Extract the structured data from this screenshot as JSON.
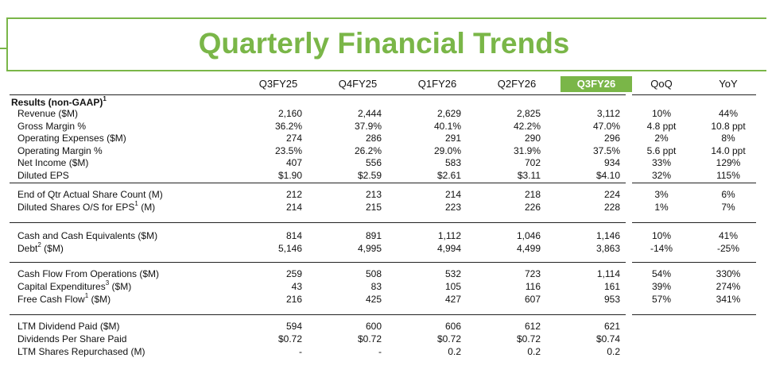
{
  "title": "Quarterly Financial Trends",
  "colors": {
    "accent": "#7ab648"
  },
  "columns": [
    "Q3FY25",
    "Q4FY25",
    "Q1FY26",
    "Q2FY26",
    "Q3FY26"
  ],
  "change_columns": [
    "QoQ",
    "YoY"
  ],
  "highlight_column": "Q3FY26",
  "sections": [
    {
      "title": "Results (non-GAAP)",
      "title_sup": "1",
      "rows": [
        {
          "label": "Revenue ($M)",
          "sup": "",
          "values": [
            "2,160",
            "2,444",
            "2,629",
            "2,825",
            "3,112"
          ],
          "qoq": "10%",
          "yoy": "44%"
        },
        {
          "label": "Gross Margin %",
          "sup": "",
          "values": [
            "36.2%",
            "37.9%",
            "40.1%",
            "42.2%",
            "47.0%"
          ],
          "qoq": "4.8 ppt",
          "yoy": "10.8 ppt"
        },
        {
          "label": "Operating Expenses ($M)",
          "sup": "",
          "values": [
            "274",
            "286",
            "291",
            "290",
            "296"
          ],
          "qoq": "2%",
          "yoy": "8%"
        },
        {
          "label": "Operating Margin %",
          "sup": "",
          "values": [
            "23.5%",
            "26.2%",
            "29.0%",
            "31.9%",
            "37.5%"
          ],
          "qoq": "5.6 ppt",
          "yoy": "14.0 ppt"
        },
        {
          "label": "Net Income ($M)",
          "sup": "",
          "values": [
            "407",
            "556",
            "583",
            "702",
            "934"
          ],
          "qoq": "33%",
          "yoy": "129%"
        },
        {
          "label": "Diluted EPS",
          "sup": "",
          "values": [
            "$1.90",
            "$2.59",
            "$2.61",
            "$3.11",
            "$4.10"
          ],
          "qoq": "32%",
          "yoy": "115%"
        }
      ]
    },
    {
      "title": "",
      "title_sup": "",
      "rows": [
        {
          "label": "End of Qtr Actual Share Count (M)",
          "sup": "",
          "values": [
            "212",
            "213",
            "214",
            "218",
            "224"
          ],
          "qoq": "3%",
          "yoy": "6%"
        },
        {
          "label": "Diluted Shares O/S for EPS",
          "sup": "1",
          "suffix": " (M)",
          "values": [
            "214",
            "215",
            "223",
            "226",
            "228"
          ],
          "qoq": "1%",
          "yoy": "7%"
        }
      ]
    },
    {
      "title": "",
      "title_sup": "",
      "rows": [
        {
          "label": "Cash and Cash Equivalents ($M)",
          "sup": "",
          "values": [
            "814",
            "891",
            "1,112",
            "1,046",
            "1,146"
          ],
          "qoq": "10%",
          "yoy": "41%"
        },
        {
          "label": "Debt",
          "sup": "2",
          "suffix": " ($M)",
          "values": [
            "5,146",
            "4,995",
            "4,994",
            "4,499",
            "3,863"
          ],
          "qoq": "-14%",
          "yoy": "-25%"
        }
      ]
    },
    {
      "title": "",
      "title_sup": "",
      "rows": [
        {
          "label": "Cash Flow From Operations ($M)",
          "sup": "",
          "values": [
            "259",
            "508",
            "532",
            "723",
            "1,114"
          ],
          "qoq": "54%",
          "yoy": "330%"
        },
        {
          "label": "Capital Expenditures",
          "sup": "3",
          "suffix": " ($M)",
          "values": [
            "43",
            "83",
            "105",
            "116",
            "161"
          ],
          "qoq": "39%",
          "yoy": "274%"
        },
        {
          "label": "Free Cash Flow",
          "sup": "1",
          "suffix": " ($M)",
          "values": [
            "216",
            "425",
            "427",
            "607",
            "953"
          ],
          "qoq": "57%",
          "yoy": "341%"
        }
      ]
    },
    {
      "title": "",
      "title_sup": "",
      "rows": [
        {
          "label": "LTM Dividend Paid ($M)",
          "sup": "",
          "values": [
            "594",
            "600",
            "606",
            "612",
            "621"
          ],
          "qoq": "",
          "yoy": ""
        },
        {
          "label": "Dividends Per Share Paid",
          "sup": "",
          "values": [
            "$0.72",
            "$0.72",
            "$0.72",
            "$0.72",
            "$0.74"
          ],
          "qoq": "",
          "yoy": ""
        },
        {
          "label": "LTM Shares Repurchased (M)",
          "sup": "",
          "values": [
            "-",
            "-",
            "0.2",
            "0.2",
            "0.2"
          ],
          "qoq": "",
          "yoy": ""
        }
      ]
    }
  ]
}
